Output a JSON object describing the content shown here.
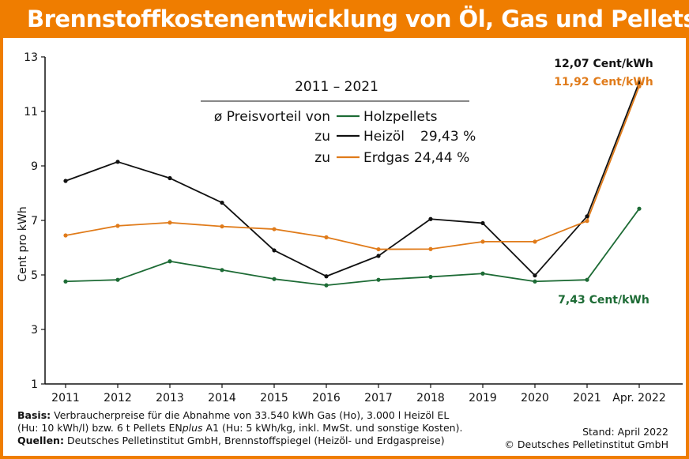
{
  "header": {
    "title": "Brennstoffkostenentwicklung von Öl, Gas und Pellets"
  },
  "chart_data": {
    "type": "line",
    "ylabel": "Cent pro kWh",
    "xlabel": "",
    "ylim": [
      1,
      13
    ],
    "yticks": [
      1,
      3,
      5,
      7,
      9,
      11,
      13
    ],
    "categories": [
      "2011",
      "2012",
      "2013",
      "2014",
      "2015",
      "2016",
      "2017",
      "2018",
      "2019",
      "2020",
      "2021",
      "Apr. 2022"
    ],
    "series": [
      {
        "name": "Heizöl",
        "color": "#111111",
        "values": [
          8.45,
          9.15,
          8.55,
          7.65,
          5.9,
          4.95,
          5.7,
          7.05,
          6.9,
          4.98,
          7.15,
          12.07
        ]
      },
      {
        "name": "Erdgas",
        "color": "#e07b1a",
        "values": [
          6.45,
          6.8,
          6.92,
          6.78,
          6.68,
          6.38,
          5.94,
          5.95,
          6.22,
          6.22,
          6.98,
          11.92
        ]
      },
      {
        "name": "Holzpellets",
        "color": "#1d6b35",
        "values": [
          4.76,
          4.82,
          5.5,
          5.18,
          4.85,
          4.62,
          4.82,
          4.93,
          5.05,
          4.76,
          4.82,
          7.43
        ]
      }
    ],
    "legend": {
      "period": "2011 – 2021",
      "heading": "ø Preisvorteil von",
      "pellets_label": "Holzpellets",
      "to1": "zu",
      "oil_label": "Heizöl",
      "oil_value": "29,43 %",
      "to2": "zu",
      "gas_label": "Erdgas",
      "gas_value": "24,44 %"
    },
    "annotations": {
      "oil": "12,07 Cent/kWh",
      "gas": "11,92 Cent/kWh",
      "pellets": "7,43 Cent/kWh"
    },
    "grid": false,
    "legend_position": "top-center"
  },
  "footer": {
    "basis_label": "Basis:",
    "basis_line1": "Verbraucherpreise für die Abnahme von 33.540 kWh Gas (Ho), 3.000 l Heizöl EL",
    "basis_line2a": "(Hu: 10 kWh/l) bzw. 6 t Pellets EN",
    "basis_line2b": "plus",
    "basis_line2c": " A1 (Hu: 5 kWh/kg, inkl. MwSt. und sonstige Kosten).",
    "sources_label": "Quellen:",
    "sources_text": "Deutsches Pelletinstitut GmbH, Brennstoffspiegel (Heizöl- und Erdgaspreise)",
    "stand": "Stand: April 2022",
    "copyright": "© Deutsches Pelletinstitut GmbH"
  }
}
